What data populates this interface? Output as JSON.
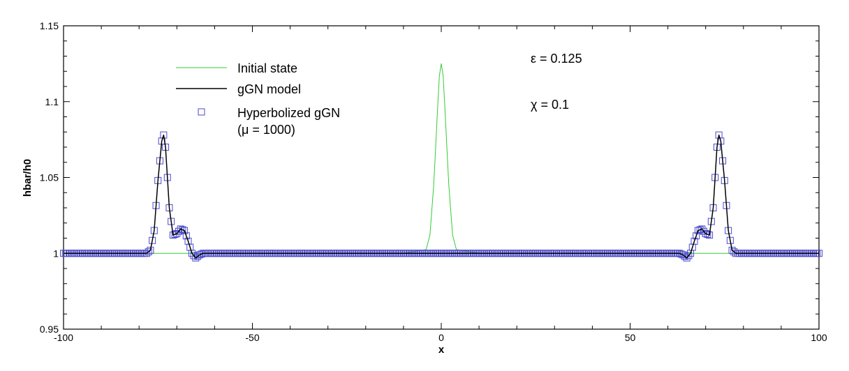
{
  "chart_data": {
    "type": "line",
    "xlabel": "x",
    "ylabel": "hbar/h0",
    "xlim": [
      -100,
      100
    ],
    "ylim": [
      0.95,
      1.15
    ],
    "x_ticks": [
      {
        "value": -100,
        "label": "-100"
      },
      {
        "value": -50,
        "label": "-50"
      },
      {
        "value": 0,
        "label": "0"
      },
      {
        "value": 50,
        "label": "50"
      },
      {
        "value": 100,
        "label": "100"
      }
    ],
    "y_ticks": [
      {
        "value": 0.95,
        "label": "0.95"
      },
      {
        "value": 1.0,
        "label": "1"
      },
      {
        "value": 1.05,
        "label": "1.05"
      },
      {
        "value": 1.1,
        "label": "1.1"
      },
      {
        "value": 1.15,
        "label": "1.15"
      }
    ],
    "grid": false,
    "legend": {
      "position": "top-left",
      "entries": [
        {
          "label": "Initial state",
          "style": "line",
          "color": "#33cc33"
        },
        {
          "label": "gGN model",
          "style": "line",
          "color": "#000000"
        },
        {
          "label": "Hyperbolized gGN",
          "label_line2": "(μ = 1000)",
          "style": "square-marker",
          "color": "#4a4acc"
        }
      ]
    },
    "annotations": [
      {
        "text": "ε = 0.125"
      },
      {
        "text": "χ = 0.1"
      }
    ],
    "series": [
      {
        "name": "Initial state",
        "color": "#33cc33",
        "x": [
          -100,
          -10,
          -4,
          -3,
          -2,
          -1.5,
          -1,
          -0.5,
          0,
          0.5,
          1,
          1.5,
          2,
          3,
          4,
          10,
          100
        ],
        "y": [
          1.0,
          1.0,
          1.0025,
          1.012,
          1.045,
          1.069,
          1.094,
          1.117,
          1.125,
          1.117,
          1.094,
          1.069,
          1.045,
          1.012,
          1.0025,
          1.0,
          1.0
        ]
      },
      {
        "name": "gGN model",
        "color": "#000000",
        "x": [
          -100,
          -78,
          -77,
          -76,
          -75,
          -74,
          -73.5,
          -73,
          -72,
          -71,
          -70,
          -69,
          -68,
          -67,
          -66,
          -65,
          -64,
          -63,
          -60,
          60,
          63,
          64,
          65,
          66,
          67,
          68,
          69,
          70,
          71,
          72,
          73,
          73.5,
          74,
          75,
          76,
          77,
          78,
          100
        ],
        "y": [
          1.0,
          1.0,
          1.002,
          1.015,
          1.048,
          1.074,
          1.078,
          1.07,
          1.03,
          1.012,
          1.013,
          1.016,
          1.015,
          1.008,
          1.0,
          0.997,
          0.999,
          1.0,
          1.0,
          1.0,
          1.0,
          0.999,
          0.997,
          1.0,
          1.008,
          1.015,
          1.016,
          1.013,
          1.012,
          1.03,
          1.07,
          1.078,
          1.074,
          1.048,
          1.015,
          1.002,
          1.0,
          1.0
        ]
      },
      {
        "name": "Hyperbolized gGN",
        "color": "#4a4acc",
        "marker": "square",
        "x": [
          -100,
          -78,
          -77,
          -76,
          -75,
          -74,
          -73.5,
          -73,
          -72,
          -71,
          -70,
          -69,
          -68,
          -67,
          -66,
          -65,
          -64,
          -63,
          -60,
          60,
          63,
          64,
          65,
          66,
          67,
          68,
          69,
          70,
          71,
          72,
          73,
          73.5,
          74,
          75,
          76,
          77,
          78,
          100
        ],
        "y": [
          1.0,
          1.0,
          1.002,
          1.015,
          1.048,
          1.074,
          1.078,
          1.07,
          1.03,
          1.012,
          1.013,
          1.016,
          1.015,
          1.008,
          1.0,
          0.997,
          0.999,
          1.0,
          1.0,
          1.0,
          1.0,
          0.999,
          0.997,
          1.0,
          1.008,
          1.015,
          1.016,
          1.013,
          1.012,
          1.03,
          1.07,
          1.078,
          1.074,
          1.048,
          1.015,
          1.002,
          1.0,
          1.0
        ]
      }
    ]
  }
}
